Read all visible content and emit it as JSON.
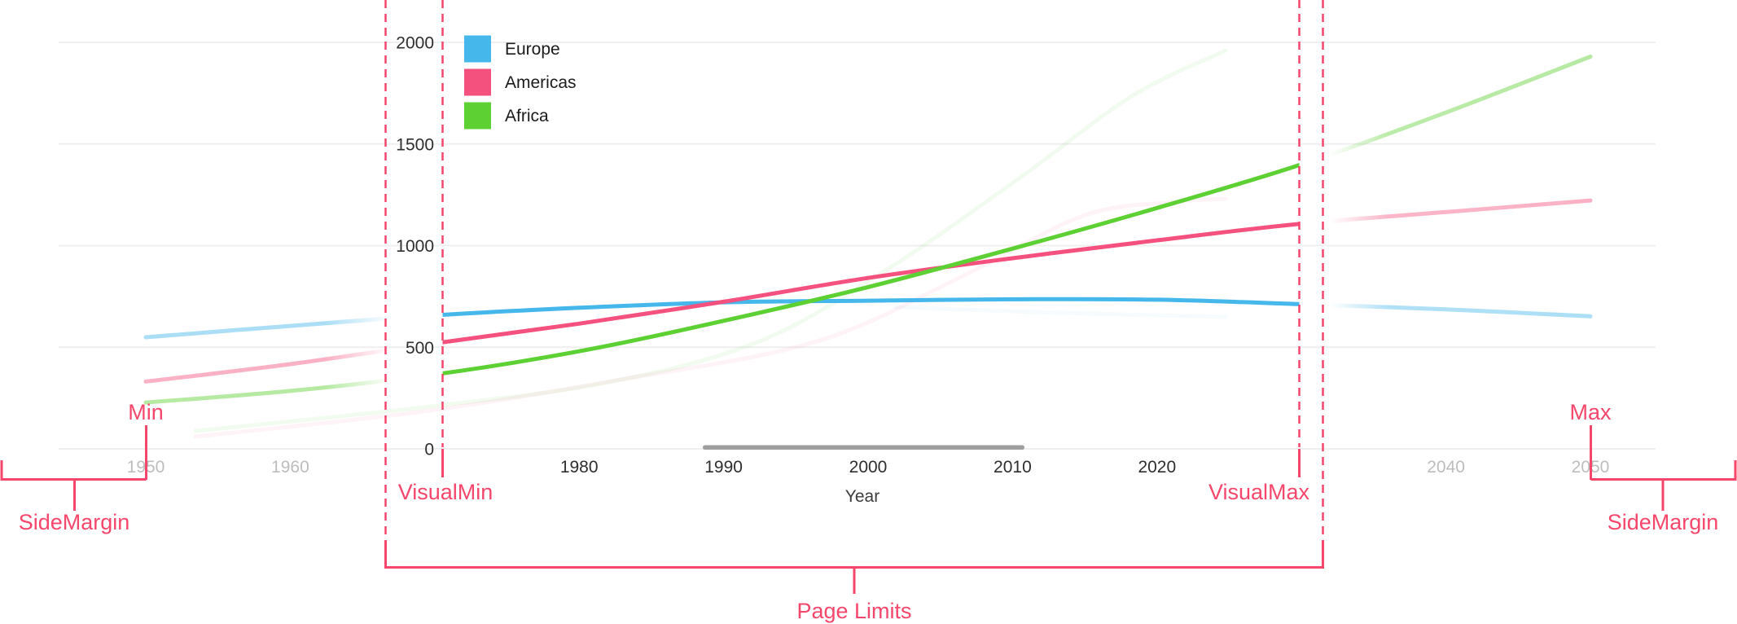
{
  "chart_data": {
    "type": "line",
    "title": "",
    "xlabel": "Year",
    "ylabel": "",
    "ylim": [
      0,
      2000
    ],
    "x_domain": [
      1950,
      2050
    ],
    "grid": "horizontal",
    "legend_position": "top-left-inside",
    "y_ticks": [
      0,
      500,
      1000,
      1500,
      2000
    ],
    "x_ticks": [
      {
        "label": "1950",
        "muted": true
      },
      {
        "label": "1960",
        "muted": true
      },
      {
        "label": "1980",
        "muted": false
      },
      {
        "label": "1990",
        "muted": false
      },
      {
        "label": "2000",
        "muted": false
      },
      {
        "label": "2010",
        "muted": false
      },
      {
        "label": "2020",
        "muted": false
      },
      {
        "label": "2040",
        "muted": true
      },
      {
        "label": "2050",
        "muted": true
      }
    ],
    "years": [
      1950,
      1960,
      1970,
      1980,
      1990,
      2000,
      2010,
      2020,
      2030,
      2040,
      2050
    ],
    "series": [
      {
        "name": "Europe",
        "color": "#45B7EB",
        "values": [
          549,
          605,
          657,
          694,
          721,
          729,
          736,
          734,
          712,
          686,
          652
        ]
      },
      {
        "name": "Americas",
        "color": "#F5517E",
        "values": [
          331,
          417,
          519,
          616,
          724,
          841,
          938,
          1026,
          1108,
          1165,
          1222
        ]
      },
      {
        "name": "Africa",
        "color": "#5DD033",
        "values": [
          228,
          285,
          366,
          480,
          630,
          796,
          985,
          1185,
          1400,
          1655,
          1930
        ]
      }
    ]
  },
  "annotations": {
    "color": "#F5476B",
    "min_label": "Min",
    "max_label": "Max",
    "visual_min_label": "VisualMin",
    "visual_max_label": "VisualMax",
    "side_margin_left_label": "SideMargin",
    "side_margin_right_label": "SideMargin",
    "page_limits_label": "Page Limits"
  },
  "scrollbar": {
    "color": "#9E9E9E"
  }
}
